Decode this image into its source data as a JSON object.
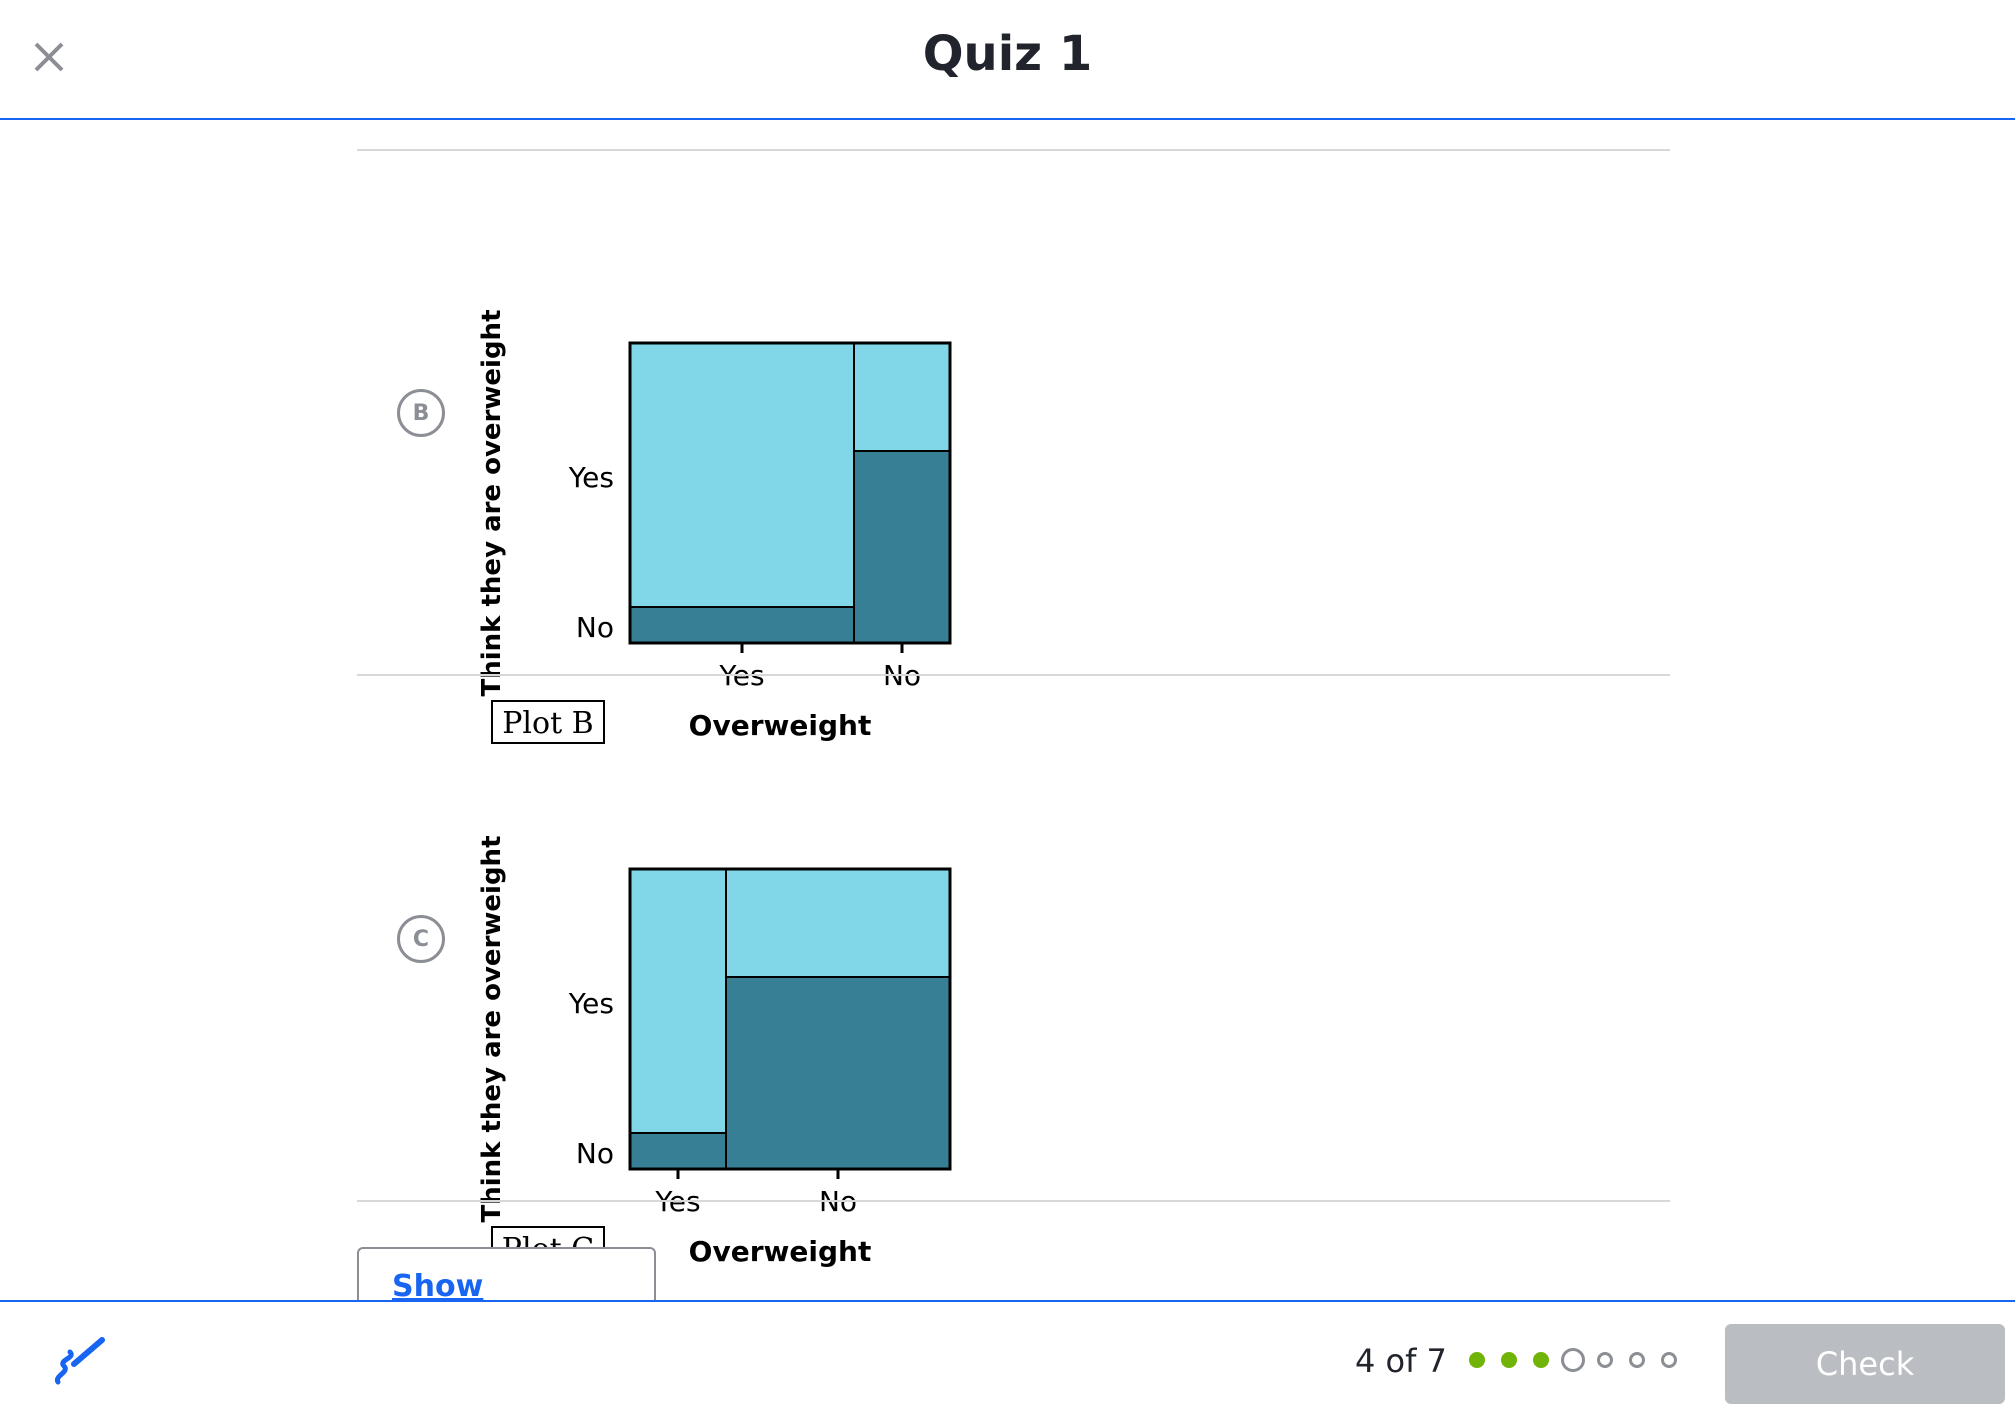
{
  "header": {
    "title": "Quiz 1"
  },
  "choices": [
    {
      "letter": "B",
      "plot_label": "Plot B",
      "chart_data": {
        "type": "mosaic",
        "xlabel": "Overweight",
        "ylabel": "Think they are overweight",
        "x_categories": [
          "Yes",
          "No"
        ],
        "y_categories": [
          "Yes",
          "No"
        ],
        "column_widths": [
          0.7,
          0.3
        ],
        "no_share_per_column": [
          0.12,
          0.64
        ],
        "colors": {
          "Yes": "#81d7e8",
          "No": "#377f94"
        }
      }
    },
    {
      "letter": "C",
      "plot_label": "Plot C",
      "chart_data": {
        "type": "mosaic",
        "xlabel": "Overweight",
        "ylabel": "Think they are overweight",
        "x_categories": [
          "Yes",
          "No"
        ],
        "y_categories": [
          "Yes",
          "No"
        ],
        "column_widths": [
          0.3,
          0.7
        ],
        "no_share_per_column": [
          0.12,
          0.64
        ],
        "colors": {
          "Yes": "#81d7e8",
          "No": "#377f94"
        }
      }
    }
  ],
  "calculator": {
    "label": "Show Calculator"
  },
  "footer": {
    "progress": "4 of 7",
    "answered": 3,
    "total": 7,
    "current": 4,
    "check_label": "Check"
  }
}
